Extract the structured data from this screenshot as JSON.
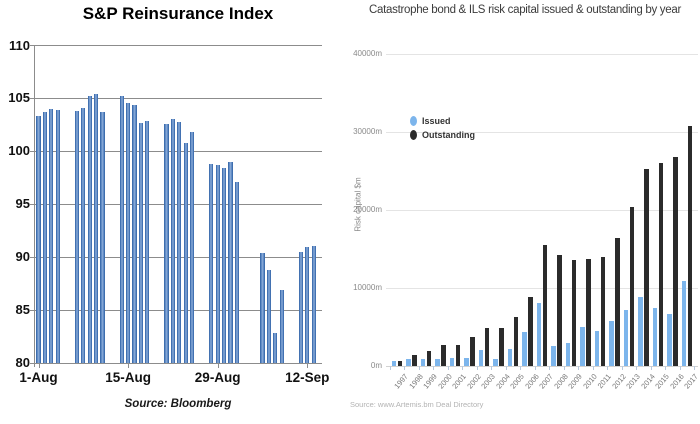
{
  "chart_data": [
    {
      "type": "bar",
      "title": "S&P Reinsurance Index",
      "source": "Source: Bloomberg",
      "ylim": [
        80,
        110
      ],
      "yticks": [
        110,
        105,
        100,
        95,
        90,
        85,
        80
      ],
      "grid": true,
      "bar_color": "#3a69ae",
      "xtick_labels": [
        "1-Aug",
        "15-Aug",
        "29-Aug",
        "12-Sep"
      ],
      "xtick_days": [
        0,
        14,
        28,
        42
      ],
      "points": [
        {
          "date": "1-Aug",
          "day": 0,
          "value": 103.3
        },
        {
          "date": "2-Aug",
          "day": 1,
          "value": 103.7
        },
        {
          "date": "3-Aug",
          "day": 2,
          "value": 104.0
        },
        {
          "date": "4-Aug",
          "day": 3,
          "value": 103.9
        },
        {
          "date": "7-Aug",
          "day": 6,
          "value": 103.8
        },
        {
          "date": "8-Aug",
          "day": 7,
          "value": 104.1
        },
        {
          "date": "9-Aug",
          "day": 8,
          "value": 105.2
        },
        {
          "date": "10-Aug",
          "day": 9,
          "value": 105.4
        },
        {
          "date": "11-Aug",
          "day": 10,
          "value": 103.7
        },
        {
          "date": "14-Aug",
          "day": 13,
          "value": 105.2
        },
        {
          "date": "15-Aug",
          "day": 14,
          "value": 104.6
        },
        {
          "date": "16-Aug",
          "day": 15,
          "value": 104.4
        },
        {
          "date": "17-Aug",
          "day": 16,
          "value": 102.7
        },
        {
          "date": "18-Aug",
          "day": 17,
          "value": 102.9
        },
        {
          "date": "21-Aug",
          "day": 20,
          "value": 102.6
        },
        {
          "date": "22-Aug",
          "day": 21,
          "value": 103.1
        },
        {
          "date": "23-Aug",
          "day": 22,
          "value": 102.8
        },
        {
          "date": "24-Aug",
          "day": 23,
          "value": 100.8
        },
        {
          "date": "25-Aug",
          "day": 24,
          "value": 101.8
        },
        {
          "date": "28-Aug",
          "day": 27,
          "value": 98.8
        },
        {
          "date": "29-Aug",
          "day": 28,
          "value": 98.7
        },
        {
          "date": "30-Aug",
          "day": 29,
          "value": 98.4
        },
        {
          "date": "31-Aug",
          "day": 30,
          "value": 99.0
        },
        {
          "date": "1-Sep",
          "day": 31,
          "value": 97.1
        },
        {
          "date": "5-Sep",
          "day": 35,
          "value": 90.4
        },
        {
          "date": "6-Sep",
          "day": 36,
          "value": 88.8
        },
        {
          "date": "7-Sep",
          "day": 37,
          "value": 82.8
        },
        {
          "date": "8-Sep",
          "day": 38,
          "value": 86.9
        },
        {
          "date": "11-Sep",
          "day": 41,
          "value": 90.5
        },
        {
          "date": "12-Sep",
          "day": 42,
          "value": 91.0
        },
        {
          "date": "13-Sep",
          "day": 43,
          "value": 91.1
        }
      ]
    },
    {
      "type": "grouped-bar",
      "title": "Catastrophe bond & ILS risk capital issued & outstanding by year",
      "ylabel": "Risk capital $m",
      "source": "Source: www.Artemis.bm Deal Directory",
      "ylim": [
        0,
        40000
      ],
      "ytick_labels": [
        "40000m",
        "30000m",
        "20000m",
        "10000m",
        "0m"
      ],
      "ytick_values": [
        40000,
        30000,
        20000,
        10000,
        0
      ],
      "grid": true,
      "legend_position": "upper-left",
      "legend": [
        {
          "name": "Issued",
          "color": "#7cb5ec"
        },
        {
          "name": "Outstanding",
          "color": "#2b2b2b"
        }
      ],
      "categories": [
        "1997",
        "1998",
        "1999",
        "2000",
        "2001",
        "2002",
        "2003",
        "2004",
        "2005",
        "2006",
        "2007",
        "2008",
        "2009",
        "2010",
        "2011",
        "2012",
        "2013",
        "2014",
        "2015",
        "2016",
        "2017"
      ],
      "series": [
        {
          "name": "Issued",
          "color": "#7cb5ec",
          "values": [
            700,
            900,
            950,
            950,
            970,
            1050,
            2000,
            900,
            2200,
            4400,
            8100,
            2600,
            3000,
            5000,
            4500,
            5800,
            7200,
            8800,
            7500,
            6700,
            10900
          ]
        },
        {
          "name": "Outstanding",
          "color": "#2b2b2b",
          "values": [
            600,
            1400,
            1900,
            2650,
            2750,
            3700,
            4900,
            4900,
            6300,
            8900,
            15500,
            14200,
            13600,
            13700,
            14000,
            16400,
            20400,
            25200,
            26000,
            26800,
            30800
          ]
        }
      ]
    }
  ]
}
